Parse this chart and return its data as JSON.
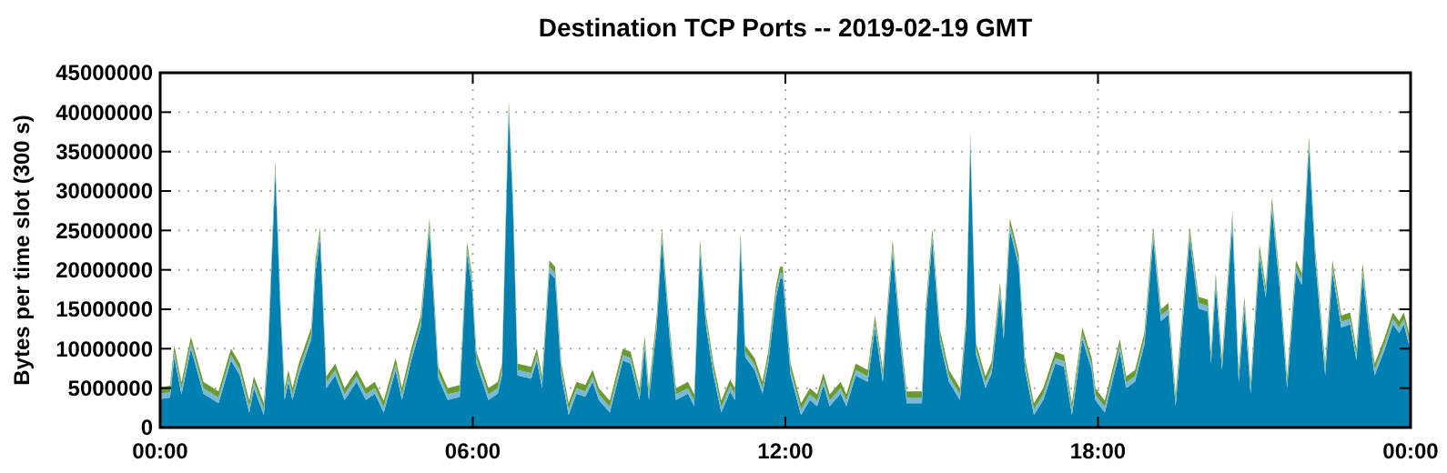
{
  "chart_data": {
    "type": "area",
    "title": "Destination TCP Ports -- 2019-02-19 GMT",
    "ylabel": "Bytes per time slot (300 s)",
    "stacked": true,
    "grid": true,
    "xlim": [
      0,
      24
    ],
    "xticks": [
      {
        "value": 0,
        "label": "00:00"
      },
      {
        "value": 6,
        "label": "06:00"
      },
      {
        "value": 12,
        "label": "12:00"
      },
      {
        "value": 18,
        "label": "18:00"
      },
      {
        "value": 24,
        "label": "00:00"
      }
    ],
    "ylim": [
      0,
      45000000
    ],
    "yticks": [
      0,
      5000000,
      10000000,
      15000000,
      20000000,
      25000000,
      30000000,
      35000000,
      40000000,
      45000000
    ],
    "x": [
      0,
      0.19,
      0.27,
      0.41,
      0.59,
      0.83,
      1.12,
      1.36,
      1.53,
      1.71,
      1.8,
      1.99,
      2.07,
      2.21,
      2.31,
      2.39,
      2.46,
      2.54,
      2.66,
      2.9,
      2.98,
      3.07,
      3.19,
      3.36,
      3.54,
      3.77,
      3.95,
      4.12,
      4.29,
      4.52,
      4.64,
      4.82,
      5,
      5.17,
      5.34,
      5.52,
      5.75,
      5.89,
      5.98,
      6.07,
      6.3,
      6.48,
      6.56,
      6.69,
      6.77,
      6.86,
      7.12,
      7.23,
      7.33,
      7.47,
      7.58,
      7.7,
      7.84,
      7.99,
      8.16,
      8.3,
      8.42,
      8.63,
      8.88,
      9.03,
      9.2,
      9.3,
      9.38,
      9.53,
      9.63,
      9.78,
      9.9,
      10.13,
      10.25,
      10.36,
      10.48,
      10.62,
      10.77,
      10.94,
      11.03,
      11.14,
      11.23,
      11.41,
      11.56,
      11.67,
      11.82,
      11.9,
      11.95,
      12.1,
      12.3,
      12.47,
      12.61,
      12.73,
      12.85,
      13.06,
      13.17,
      13.35,
      13.58,
      13.72,
      13.87,
      13.96,
      14.06,
      14.21,
      14.33,
      14.62,
      14.7,
      14.82,
      14.97,
      15.14,
      15.35,
      15.47,
      15.55,
      15.66,
      15.84,
      15.96,
      16.12,
      16.19,
      16.31,
      16.48,
      16.6,
      16.77,
      16.95,
      17.18,
      17.35,
      17.5,
      17.7,
      17.88,
      17.95,
      18.13,
      18.42,
      18.54,
      18.71,
      18.89,
      19.06,
      19.21,
      19.35,
      19.49,
      19.76,
      19.93,
      20.11,
      20.17,
      20.26,
      20.38,
      20.58,
      20.7,
      20.81,
      20.93,
      21.1,
      21.22,
      21.34,
      21.48,
      21.63,
      21.8,
      21.91,
      22.05,
      22.17,
      22.36,
      22.5,
      22.67,
      22.84,
      22.96,
      23.08,
      23.2,
      23.31,
      23.49,
      23.66,
      23.78,
      23.87,
      24
    ],
    "series": [
      {
        "color": "#0080b0",
        "values": [
          3600000,
          3800000,
          8900000,
          4200000,
          10000000,
          4300000,
          3100000,
          8500000,
          6600000,
          1900000,
          5000000,
          1600000,
          8900000,
          32300000,
          14300000,
          3500000,
          5800000,
          3500000,
          6600000,
          11200000,
          19700000,
          23900000,
          5000000,
          6600000,
          3500000,
          5800000,
          3500000,
          4300000,
          1900000,
          7300000,
          3500000,
          8500000,
          12700000,
          25000000,
          6200000,
          3500000,
          3900000,
          22000000,
          18100000,
          8100000,
          3500000,
          4300000,
          6600000,
          40000000,
          28100000,
          6600000,
          6200000,
          8500000,
          5000000,
          19700000,
          18900000,
          6600000,
          1600000,
          4300000,
          3900000,
          5800000,
          3500000,
          1900000,
          8500000,
          8100000,
          3500000,
          10100000,
          3500000,
          12700000,
          23700000,
          11200000,
          3500000,
          4300000,
          2700000,
          22300000,
          12700000,
          6600000,
          1900000,
          4600000,
          3500000,
          23100000,
          8900000,
          7300000,
          4300000,
          8100000,
          16500000,
          18900000,
          18900000,
          6600000,
          1600000,
          3500000,
          2700000,
          5400000,
          2700000,
          4300000,
          2700000,
          6600000,
          5800000,
          12700000,
          5800000,
          14300000,
          22300000,
          10500000,
          3100000,
          3100000,
          14300000,
          23700000,
          10800000,
          5800000,
          3500000,
          12700000,
          35800000,
          9200000,
          5000000,
          6900000,
          16900000,
          11200000,
          25000000,
          20400000,
          7300000,
          1600000,
          3500000,
          8100000,
          7700000,
          1600000,
          11200000,
          7300000,
          3500000,
          1900000,
          9700000,
          5000000,
          5800000,
          10500000,
          23900000,
          13500000,
          14300000,
          2700000,
          23900000,
          15100000,
          14700000,
          8100000,
          18100000,
          7300000,
          25800000,
          5800000,
          15100000,
          4300000,
          21600000,
          16500000,
          27700000,
          18100000,
          5000000,
          19700000,
          18100000,
          35400000,
          21200000,
          6600000,
          19700000,
          12700000,
          13100000,
          8500000,
          19300000,
          12000000,
          6600000,
          9700000,
          13100000,
          12000000,
          13100000,
          9700000
        ]
      },
      {
        "color": "#7ab8d8",
        "values": [
          700000,
          700000,
          700000,
          700000,
          700000,
          700000,
          700000,
          700000,
          700000,
          700000,
          700000,
          700000,
          700000,
          700000,
          700000,
          700000,
          700000,
          700000,
          700000,
          700000,
          700000,
          700000,
          700000,
          700000,
          700000,
          700000,
          700000,
          700000,
          700000,
          700000,
          700000,
          700000,
          700000,
          700000,
          700000,
          700000,
          700000,
          700000,
          700000,
          700000,
          700000,
          700000,
          700000,
          700000,
          700000,
          700000,
          700000,
          700000,
          700000,
          700000,
          700000,
          700000,
          700000,
          700000,
          700000,
          700000,
          700000,
          700000,
          700000,
          700000,
          700000,
          700000,
          700000,
          700000,
          700000,
          700000,
          700000,
          700000,
          700000,
          700000,
          700000,
          700000,
          700000,
          700000,
          700000,
          700000,
          700000,
          700000,
          700000,
          700000,
          700000,
          700000,
          700000,
          700000,
          700000,
          700000,
          700000,
          700000,
          700000,
          700000,
          700000,
          700000,
          700000,
          700000,
          700000,
          700000,
          700000,
          700000,
          700000,
          700000,
          700000,
          700000,
          700000,
          700000,
          700000,
          700000,
          700000,
          700000,
          700000,
          700000,
          700000,
          700000,
          700000,
          700000,
          700000,
          700000,
          700000,
          700000,
          700000,
          700000,
          700000,
          700000,
          700000,
          700000,
          700000,
          700000,
          700000,
          700000,
          700000,
          700000,
          700000,
          700000,
          700000,
          700000,
          700000,
          700000,
          700000,
          700000,
          700000,
          700000,
          700000,
          700000,
          700000,
          700000,
          700000,
          700000,
          700000,
          700000,
          700000,
          700000,
          700000,
          700000,
          700000,
          700000,
          700000,
          700000,
          700000,
          700000,
          700000,
          700000,
          700000,
          700000,
          700000,
          700000
        ]
      },
      {
        "color": "#6a9a30",
        "values": [
          800000,
          800000,
          800000,
          800000,
          800000,
          800000,
          800000,
          800000,
          800000,
          800000,
          800000,
          800000,
          800000,
          800000,
          800000,
          800000,
          800000,
          800000,
          800000,
          800000,
          800000,
          800000,
          800000,
          800000,
          800000,
          800000,
          800000,
          800000,
          800000,
          800000,
          800000,
          800000,
          800000,
          800000,
          800000,
          800000,
          800000,
          800000,
          800000,
          800000,
          800000,
          800000,
          800000,
          800000,
          800000,
          800000,
          800000,
          800000,
          800000,
          800000,
          800000,
          800000,
          800000,
          800000,
          800000,
          800000,
          800000,
          800000,
          800000,
          800000,
          800000,
          800000,
          800000,
          800000,
          800000,
          800000,
          800000,
          800000,
          800000,
          800000,
          800000,
          800000,
          800000,
          800000,
          800000,
          800000,
          800000,
          800000,
          800000,
          800000,
          800000,
          800000,
          800000,
          800000,
          800000,
          800000,
          800000,
          800000,
          800000,
          800000,
          800000,
          800000,
          800000,
          800000,
          800000,
          800000,
          800000,
          800000,
          800000,
          800000,
          800000,
          800000,
          800000,
          800000,
          800000,
          800000,
          800000,
          800000,
          800000,
          800000,
          800000,
          800000,
          800000,
          800000,
          800000,
          800000,
          800000,
          800000,
          800000,
          800000,
          800000,
          800000,
          800000,
          800000,
          800000,
          800000,
          800000,
          800000,
          800000,
          800000,
          800000,
          800000,
          800000,
          800000,
          800000,
          800000,
          800000,
          800000,
          800000,
          800000,
          800000,
          800000,
          800000,
          800000,
          800000,
          800000,
          800000,
          800000,
          800000,
          800000,
          800000,
          800000,
          800000,
          800000,
          800000,
          800000,
          800000,
          800000,
          800000,
          800000,
          800000,
          800000,
          800000,
          800000
        ]
      }
    ]
  }
}
